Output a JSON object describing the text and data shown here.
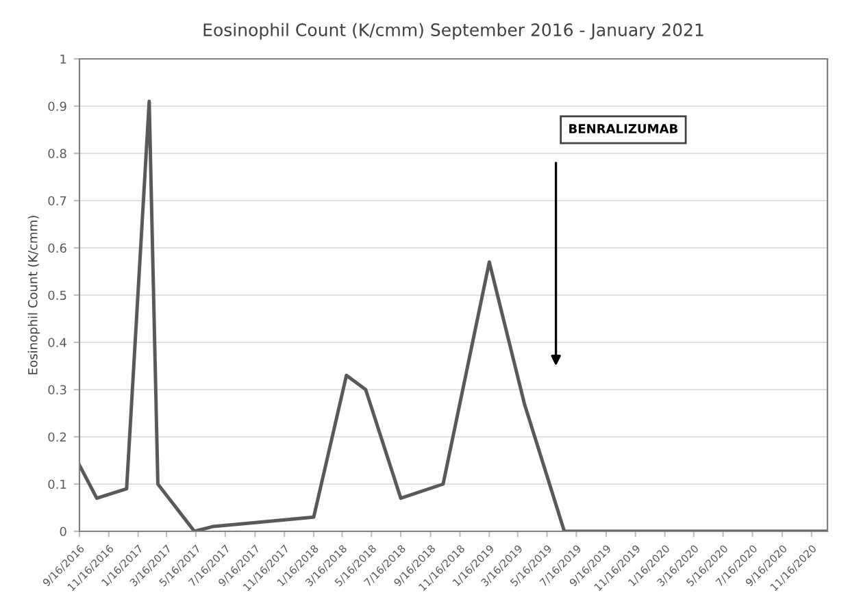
{
  "chart_data": {
    "type": "line",
    "title": "Eosinophil Count (K/cmm) September 2016 - January 2021",
    "ylabel": "Eosinophil Count (K/cmm)",
    "x": [
      "2016-09-16",
      "2016-10-22",
      "2016-12-23",
      "2017-02-08",
      "2017-02-26",
      "2017-05-13",
      "2017-06-20",
      "2018-01-16",
      "2018-03-25",
      "2018-05-04",
      "2018-07-16",
      "2018-10-12",
      "2019-01-16",
      "2019-03-30",
      "2019-06-21",
      "2020-12-19"
    ],
    "series": [
      {
        "color": "#595959",
        "values": [
          0.14,
          0.07,
          0.09,
          0.91,
          0.1,
          0.0,
          0.01,
          0.03,
          0.33,
          0.3,
          0.07,
          0.1,
          0.57,
          0.27,
          0.0,
          0.0
        ]
      }
    ],
    "xlim": [
      "2016-09-16",
      "2020-12-19"
    ],
    "xticks": [
      {
        "value": "2016-09-16",
        "label": "9/16/2016"
      },
      {
        "value": "2016-11-16",
        "label": "11/16/2016"
      },
      {
        "value": "2017-01-16",
        "label": "1/16/2017"
      },
      {
        "value": "2017-03-16",
        "label": "3/16/2017"
      },
      {
        "value": "2017-05-16",
        "label": "5/16/2017"
      },
      {
        "value": "2017-07-16",
        "label": "7/16/2017"
      },
      {
        "value": "2017-09-16",
        "label": "9/16/2017"
      },
      {
        "value": "2017-11-16",
        "label": "11/16/2017"
      },
      {
        "value": "2018-01-16",
        "label": "1/16/2018"
      },
      {
        "value": "2018-03-16",
        "label": "3/16/2018"
      },
      {
        "value": "2018-05-16",
        "label": "5/16/2018"
      },
      {
        "value": "2018-07-16",
        "label": "7/16/2018"
      },
      {
        "value": "2018-09-16",
        "label": "9/16/2018"
      },
      {
        "value": "2018-11-16",
        "label": "11/16/2018"
      },
      {
        "value": "2019-01-16",
        "label": "1/16/2019"
      },
      {
        "value": "2019-03-16",
        "label": "3/16/2019"
      },
      {
        "value": "2019-05-16",
        "label": "5/16/2019"
      },
      {
        "value": "2019-07-16",
        "label": "7/16/2019"
      },
      {
        "value": "2019-09-16",
        "label": "9/16/2019"
      },
      {
        "value": "2019-11-16",
        "label": "11/16/2019"
      },
      {
        "value": "2020-01-16",
        "label": "1/16/2020"
      },
      {
        "value": "2020-03-16",
        "label": "3/16/2020"
      },
      {
        "value": "2020-05-16",
        "label": "5/16/2020"
      },
      {
        "value": "2020-07-16",
        "label": "7/16/2020"
      },
      {
        "value": "2020-09-16",
        "label": "9/16/2020"
      },
      {
        "value": "2020-11-16",
        "label": "11/16/2020"
      }
    ],
    "ylim": [
      0,
      1
    ],
    "yticks": [
      0,
      0.1,
      0.2,
      0.3,
      0.4,
      0.5,
      0.6,
      0.7,
      0.8,
      0.9,
      1
    ],
    "grid": "y",
    "marker": "none",
    "line_style": "solid",
    "annotations": [
      "BENRALIZUMAB"
    ]
  }
}
